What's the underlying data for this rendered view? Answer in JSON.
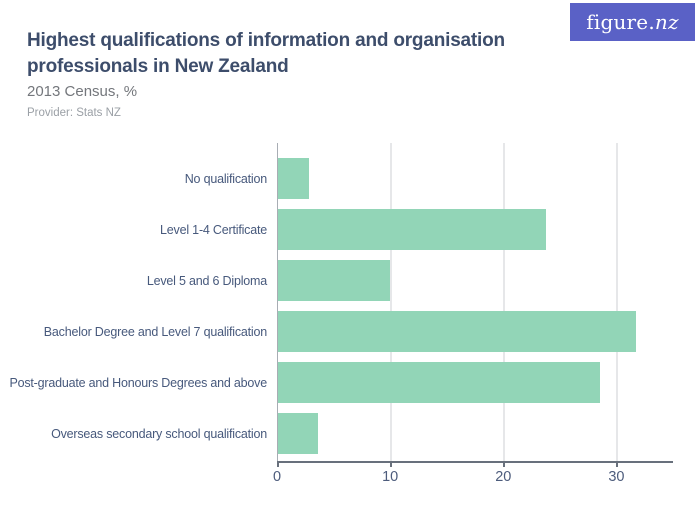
{
  "header": {
    "title": "Highest qualifications of information and organisation professionals in New Zealand",
    "subtitle": "2013 Census, %",
    "provider": "Provider: Stats NZ",
    "logo_text": "figure.",
    "logo_text_italic": "nz",
    "logo_bg_color": "#5a61c6"
  },
  "chart_data": {
    "type": "bar",
    "orientation": "horizontal",
    "title": "Highest qualifications of information and organisation professionals in New Zealand",
    "subtitle": "2013 Census, %",
    "categories": [
      "No qualification",
      "Level 1-4 Certificate",
      "Level 5 and 6 Diploma",
      "Bachelor Degree and Level 7 qualification",
      "Post-graduate and Honours Degrees and above",
      "Overseas secondary school qualification"
    ],
    "values": [
      2.7,
      23.7,
      9.9,
      31.6,
      28.5,
      3.5
    ],
    "unit": "%",
    "xlabel": "",
    "ylabel": "",
    "xlim": [
      0,
      35
    ],
    "xticks": [
      0,
      10,
      20,
      30
    ],
    "grid": true,
    "legend_position": "none",
    "bar_color": "#92d5b7",
    "gridline_color": "#e6e7e9",
    "axis_color": "#68707c",
    "label_color": "#47597c"
  }
}
